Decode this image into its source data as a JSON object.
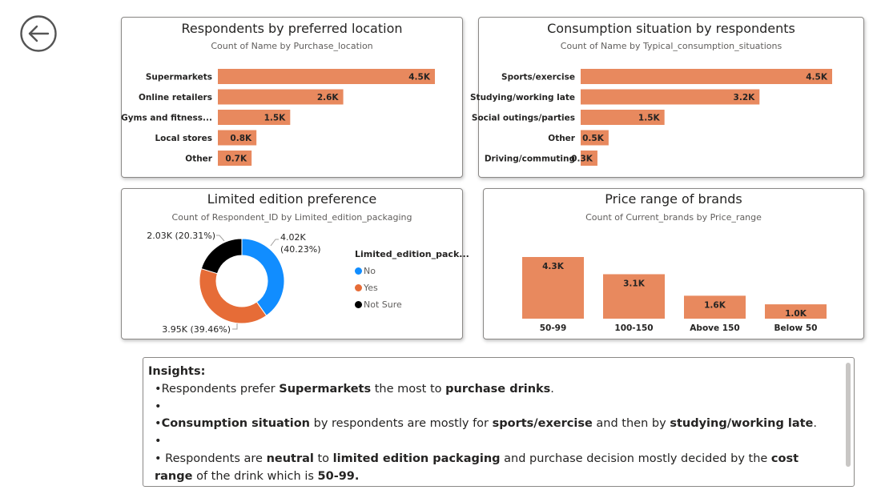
{
  "back_button": {
    "icon": "back-arrow-icon"
  },
  "colors": {
    "bar": "#E8895E",
    "no": "#118DFF",
    "yes": "#E66C37",
    "not_sure": "#000000"
  },
  "charts": {
    "location": {
      "title": "Respondents by preferred location",
      "subtitle": "Count of Name by Purchase_location"
    },
    "consumption": {
      "title": "Consumption situation by respondents",
      "subtitle": "Count of Name by Typical_consumption_situations"
    },
    "limited": {
      "title": "Limited edition preference",
      "subtitle": "Count of Respondent_ID by Limited_edition_packaging",
      "legend_title": "Limited_edition_pack...",
      "legend": [
        "No",
        "Yes",
        "Not Sure"
      ]
    },
    "price": {
      "title": "Price range of brands",
      "subtitle": "Count of Current_brands by Price_range"
    }
  },
  "chart_data": [
    {
      "type": "bar",
      "orientation": "horizontal",
      "title": "Respondents by preferred location",
      "subtitle": "Count of Name by Purchase_location",
      "categories": [
        "Supermarkets",
        "Online retailers",
        "Gyms and fitness...",
        "Local stores",
        "Other"
      ],
      "values": [
        4500,
        2600,
        1500,
        800,
        700
      ],
      "labels": [
        "4.5K",
        "2.6K",
        "1.5K",
        "0.8K",
        "0.7K"
      ]
    },
    {
      "type": "bar",
      "orientation": "horizontal",
      "title": "Consumption situation by respondents",
      "subtitle": "Count of Name by Typical_consumption_situations",
      "categories": [
        "Sports/exercise",
        "Studying/working late",
        "Social outings/parties",
        "Other",
        "Driving/commuting"
      ],
      "values": [
        4500,
        3200,
        1500,
        500,
        300
      ],
      "labels": [
        "4.5K",
        "3.2K",
        "1.5K",
        "0.5K",
        "0.3K"
      ]
    },
    {
      "type": "pie",
      "variant": "donut",
      "title": "Limited edition preference",
      "subtitle": "Count of Respondent_ID by Limited_edition_packaging",
      "legend_title": "Limited_edition_pack...",
      "categories": [
        "No",
        "Yes",
        "Not Sure"
      ],
      "values": [
        4020,
        3950,
        2030
      ],
      "percent": [
        40.23,
        39.46,
        20.31
      ],
      "labels": [
        "4.02K\n(40.23%)",
        "3.95K (39.46%)",
        "2.03K (20.31%)"
      ]
    },
    {
      "type": "bar",
      "orientation": "vertical",
      "title": "Price range of brands",
      "subtitle": "Count of Current_brands by Price_range",
      "categories": [
        "50-99",
        "100-150",
        "Above 150",
        "Below 50"
      ],
      "values": [
        4300,
        3100,
        1600,
        1000
      ],
      "labels": [
        "4.3K",
        "3.1K",
        "1.6K",
        "1.0K"
      ]
    }
  ],
  "insights": {
    "title": "Insights:",
    "lines": [
      [
        {
          "t": "Respondents prefer "
        },
        {
          "t": "Supermarkets",
          "b": true
        },
        {
          "t": " the most to "
        },
        {
          "t": "purchase drinks",
          "b": true
        },
        {
          "t": "."
        }
      ],
      [],
      [
        {
          "t": "Consumption situation",
          "b": true
        },
        {
          "t": " by respondents are mostly for "
        },
        {
          "t": "sports/exercise",
          "b": true
        },
        {
          "t": " and then by "
        },
        {
          "t": "studying/working late",
          "b": true
        },
        {
          "t": "."
        }
      ],
      [],
      [
        {
          "t": " Respondents are "
        },
        {
          "t": "neutral",
          "b": true
        },
        {
          "t": " to "
        },
        {
          "t": "limited edition packaging",
          "b": true
        },
        {
          "t": " and purchase decision mostly decided by the "
        },
        {
          "t": "cost range",
          "b": true
        },
        {
          "t": " of the drink which is "
        },
        {
          "t": "50-99.",
          "b": true
        }
      ]
    ]
  }
}
